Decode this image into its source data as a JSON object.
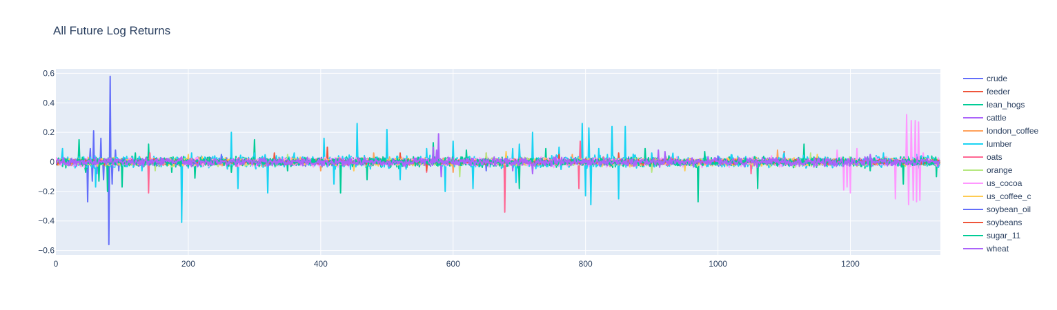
{
  "chart_data": {
    "type": "line",
    "title": "All Future Log Returns",
    "xlabel": "",
    "ylabel": "",
    "xlim": [
      0,
      1336
    ],
    "ylim": [
      -0.63,
      0.63
    ],
    "x_ticks": [
      0,
      200,
      400,
      600,
      800,
      1000,
      1200
    ],
    "x_tick_labels": [
      "0",
      "200",
      "400",
      "600",
      "800",
      "1000",
      "1200"
    ],
    "y_ticks": [
      -0.6,
      -0.4,
      -0.2,
      0,
      0.2,
      0.4,
      0.6
    ],
    "y_tick_labels": [
      "−0.6",
      "−0.4",
      "−0.2",
      "0",
      "0.2",
      "0.4",
      "0.6"
    ],
    "grid": true,
    "legend_position": "right",
    "n_points": 1336,
    "series": [
      {
        "name": "crude",
        "color": "#636efa",
        "noise": 0.018,
        "spikes": [
          [
            48,
            -0.27
          ],
          [
            52,
            0.09
          ],
          [
            55,
            -0.13
          ],
          [
            57,
            0.21
          ],
          [
            62,
            -0.08
          ],
          [
            68,
            0.16
          ],
          [
            72,
            -0.12
          ],
          [
            80,
            -0.56
          ],
          [
            82,
            0.58
          ],
          [
            85,
            -0.15
          ],
          [
            90,
            0.08
          ],
          [
            95,
            -0.06
          ]
        ]
      },
      {
        "name": "feeder",
        "color": "#EF553B",
        "noise": 0.012,
        "spikes": [
          [
            300,
            0.05
          ],
          [
            410,
            0.1
          ],
          [
            455,
            0.07
          ],
          [
            520,
            0.06
          ],
          [
            650,
            0.06
          ],
          [
            700,
            0.05
          ],
          [
            850,
            0.06
          ],
          [
            1100,
            0.07
          ]
        ]
      },
      {
        "name": "lean_hogs",
        "color": "#00cc96",
        "noise": 0.022,
        "spikes": [
          [
            35,
            0.15
          ],
          [
            45,
            -0.07
          ],
          [
            65,
            -0.13
          ],
          [
            78,
            -0.2
          ],
          [
            100,
            -0.17
          ],
          [
            140,
            0.12
          ],
          [
            175,
            -0.07
          ],
          [
            210,
            -0.11
          ],
          [
            265,
            -0.07
          ],
          [
            300,
            0.15
          ],
          [
            430,
            -0.21
          ],
          [
            470,
            -0.12
          ],
          [
            570,
            0.13
          ],
          [
            700,
            -0.18
          ],
          [
            740,
            0.09
          ],
          [
            890,
            0.09
          ],
          [
            970,
            -0.27
          ],
          [
            1060,
            -0.18
          ],
          [
            1130,
            0.12
          ],
          [
            1280,
            -0.15
          ],
          [
            1330,
            -0.1
          ]
        ]
      },
      {
        "name": "cattle",
        "color": "#ab63fa",
        "noise": 0.012,
        "spikes": [
          [
            570,
            0.1
          ],
          [
            578,
            0.19
          ],
          [
            582,
            -0.1
          ],
          [
            690,
            -0.06
          ],
          [
            910,
            0.08
          ]
        ]
      },
      {
        "name": "london_coffee",
        "color": "#FFA15A",
        "noise": 0.016,
        "spikes": [
          [
            120,
            0.05
          ],
          [
            400,
            -0.06
          ],
          [
            480,
            0.06
          ],
          [
            600,
            -0.07
          ],
          [
            780,
            0.05
          ],
          [
            900,
            -0.06
          ],
          [
            1090,
            0.08
          ],
          [
            1200,
            -0.06
          ]
        ]
      },
      {
        "name": "lumber",
        "color": "#19d3f3",
        "noise": 0.028,
        "spikes": [
          [
            10,
            0.09
          ],
          [
            60,
            -0.17
          ],
          [
            130,
            -0.06
          ],
          [
            190,
            -0.41
          ],
          [
            205,
            0.06
          ],
          [
            265,
            0.2
          ],
          [
            275,
            -0.18
          ],
          [
            300,
            0.06
          ],
          [
            320,
            -0.21
          ],
          [
            360,
            0.06
          ],
          [
            405,
            0.16
          ],
          [
            420,
            -0.15
          ],
          [
            455,
            0.26
          ],
          [
            500,
            0.22
          ],
          [
            520,
            -0.12
          ],
          [
            560,
            0.09
          ],
          [
            588,
            -0.2
          ],
          [
            600,
            0.14
          ],
          [
            630,
            -0.18
          ],
          [
            690,
            0.09
          ],
          [
            695,
            -0.14
          ],
          [
            700,
            0.12
          ],
          [
            720,
            0.2
          ],
          [
            760,
            0.1
          ],
          [
            795,
            0.26
          ],
          [
            800,
            -0.23
          ],
          [
            805,
            0.23
          ],
          [
            808,
            -0.29
          ],
          [
            820,
            0.09
          ],
          [
            840,
            0.24
          ],
          [
            850,
            -0.25
          ],
          [
            860,
            0.24
          ],
          [
            900,
            0.06
          ],
          [
            1100,
            0.06
          ],
          [
            1250,
            0.06
          ],
          [
            1300,
            0.05
          ]
        ]
      },
      {
        "name": "oats",
        "color": "#FF6692",
        "noise": 0.016,
        "spikes": [
          [
            140,
            -0.21
          ],
          [
            142,
            0.06
          ],
          [
            560,
            -0.07
          ],
          [
            678,
            -0.34
          ],
          [
            680,
            0.06
          ],
          [
            790,
            -0.18
          ],
          [
            792,
            0.14
          ],
          [
            1050,
            -0.08
          ]
        ]
      },
      {
        "name": "orange",
        "color": "#B6E880",
        "noise": 0.017,
        "spikes": [
          [
            150,
            -0.06
          ],
          [
            350,
            0.05
          ],
          [
            610,
            -0.1
          ],
          [
            650,
            0.06
          ],
          [
            900,
            -0.07
          ],
          [
            1140,
            0.06
          ],
          [
            1300,
            -0.06
          ]
        ]
      },
      {
        "name": "us_cocoa",
        "color": "#FF97FF",
        "noise": 0.02,
        "spikes": [
          [
            1180,
            0.08
          ],
          [
            1190,
            -0.19
          ],
          [
            1195,
            -0.17
          ],
          [
            1200,
            -0.21
          ],
          [
            1210,
            0.09
          ],
          [
            1268,
            -0.25
          ],
          [
            1285,
            0.32
          ],
          [
            1288,
            -0.29
          ],
          [
            1292,
            0.28
          ],
          [
            1295,
            -0.26
          ],
          [
            1298,
            0.28
          ],
          [
            1300,
            -0.27
          ],
          [
            1303,
            0.27
          ],
          [
            1305,
            -0.26
          ],
          [
            1310,
            0.06
          ]
        ]
      },
      {
        "name": "us_coffee_c",
        "color": "#FECB52",
        "noise": 0.016,
        "spikes": [
          [
            200,
            0.05
          ],
          [
            450,
            -0.06
          ],
          [
            680,
            0.07
          ],
          [
            950,
            -0.06
          ],
          [
            1150,
            0.05
          ]
        ]
      },
      {
        "name": "soybean_oil",
        "color": "#636efa",
        "noise": 0.012,
        "spikes": [
          [
            250,
            0.05
          ],
          [
            650,
            -0.06
          ],
          [
            1000,
            0.04
          ]
        ]
      },
      {
        "name": "soybeans",
        "color": "#EF553B",
        "noise": 0.011,
        "spikes": [
          [
            330,
            0.06
          ],
          [
            560,
            -0.06
          ],
          [
            760,
            0.05
          ]
        ]
      },
      {
        "name": "sugar_11",
        "color": "#00cc96",
        "noise": 0.018,
        "spikes": [
          [
            120,
            0.06
          ],
          [
            350,
            -0.06
          ],
          [
            620,
            0.08
          ],
          [
            980,
            0.07
          ],
          [
            1230,
            -0.06
          ]
        ]
      },
      {
        "name": "wheat",
        "color": "#ab63fa",
        "noise": 0.02,
        "spikes": [
          [
            60,
            0.03
          ],
          [
            575,
            0.08
          ],
          [
            720,
            -0.08
          ],
          [
            920,
            0.07
          ],
          [
            1230,
            0.05
          ]
        ]
      }
    ]
  }
}
